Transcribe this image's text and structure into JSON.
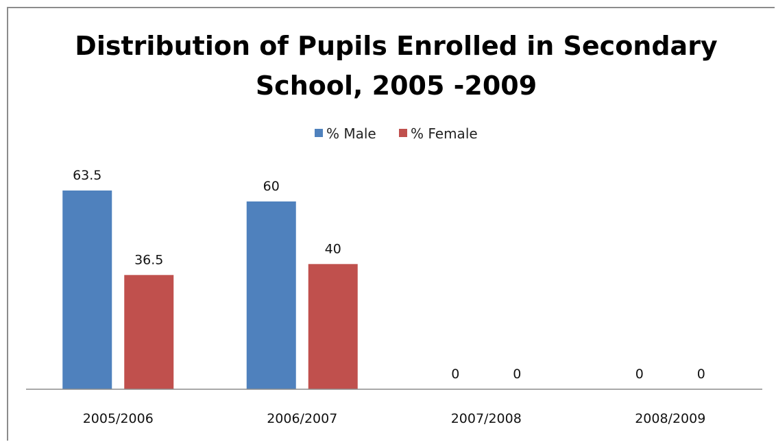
{
  "chart_data": {
    "type": "bar",
    "title_lines": [
      "Distribution of Pupils Enrolled in Secondary",
      "School, 2005 -2009"
    ],
    "categories": [
      "2005/2006",
      "2006/2007",
      "2007/2008",
      "2008/2009"
    ],
    "series": [
      {
        "name": "% Male",
        "values": [
          63.5,
          60,
          0,
          0
        ],
        "color": "#4F81BD"
      },
      {
        "name": "% Female",
        "values": [
          36.5,
          40,
          0,
          0
        ],
        "color": "#C0504D"
      }
    ],
    "data_labels": [
      [
        "63.5",
        "60",
        "0",
        "0"
      ],
      [
        "36.5",
        "40",
        "0",
        "0"
      ]
    ],
    "ylim": [
      0,
      70
    ],
    "xlabel": "",
    "ylabel": "",
    "grid": false,
    "legend_position": "top-center",
    "axis_color": "#8C8C8C"
  }
}
